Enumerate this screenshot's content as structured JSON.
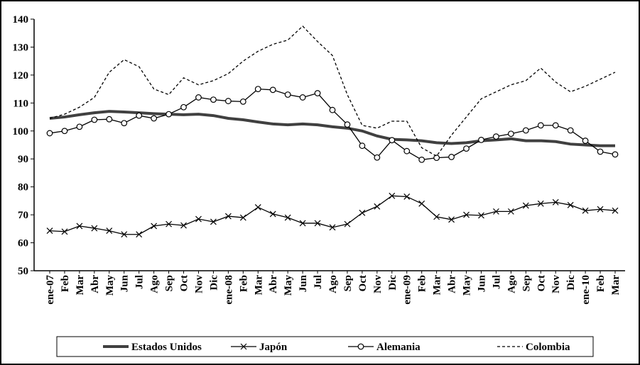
{
  "chart_data": {
    "type": "line",
    "categories": [
      "ene-07",
      "Feb",
      "Mar",
      "Abr",
      "May",
      "Jun",
      "Jul",
      "Ago",
      "Sep",
      "Oct",
      "Nov",
      "Dic",
      "ene-08",
      "Feb",
      "Mar",
      "Abr",
      "May",
      "Jun",
      "Jul",
      "Ago",
      "Sep",
      "Oct",
      "Nov",
      "Dic",
      "ene-09",
      "Feb",
      "Mar",
      "Abr",
      "May",
      "Jun",
      "Jul",
      "Ago",
      "Sep",
      "Oct",
      "Nov",
      "Dic",
      "ene-10",
      "Feb",
      "Mar"
    ],
    "series": [
      {
        "name": "Estados Unidos",
        "color": "#404040",
        "line_width": 4,
        "marker": "none",
        "dash": "none",
        "values": [
          104.5,
          105,
          105.8,
          106.5,
          107,
          106.8,
          106.5,
          106.2,
          106,
          105.8,
          106,
          105.5,
          104.5,
          104,
          103.2,
          102.5,
          102.2,
          102.5,
          102.2,
          101.5,
          101,
          100,
          98.2,
          97,
          96.8,
          96.5,
          95.8,
          95.5,
          95.8,
          96.5,
          96.8,
          97.2,
          96.5,
          96.5,
          96.2,
          95.3,
          95,
          94.7,
          94.7
        ]
      },
      {
        "name": "Japón",
        "color": "#000000",
        "line_width": 1.3,
        "marker": "x",
        "dash": "none",
        "values": [
          64.3,
          64,
          66,
          65.2,
          64.3,
          63,
          63,
          66,
          66.7,
          66.2,
          68.5,
          67.5,
          69.5,
          69,
          72.7,
          70.3,
          69,
          67,
          67,
          65.5,
          66.7,
          70.7,
          73,
          76.8,
          76.5,
          74,
          69.3,
          68.3,
          70,
          69.8,
          71.2,
          71.2,
          73.3,
          74,
          74.5,
          73.5,
          71.5,
          72,
          71.5
        ]
      },
      {
        "name": "Alemania",
        "color": "#000000",
        "line_width": 1.3,
        "marker": "circle",
        "dash": "none",
        "values": [
          99.2,
          100,
          101.5,
          104,
          104.2,
          102.8,
          105.5,
          104.5,
          106,
          108.5,
          112,
          111.2,
          110.7,
          110.5,
          115,
          114.7,
          113,
          112,
          113.5,
          107.5,
          102.3,
          94.7,
          90.5,
          96.7,
          92.8,
          89.7,
          90.4,
          90.7,
          93.7,
          96.8,
          98,
          99,
          100.2,
          102,
          102,
          100.2,
          96.5,
          92.6,
          91.6
        ]
      },
      {
        "name": "Colombia",
        "color": "#000000",
        "line_width": 1.3,
        "marker": "none",
        "dash": "4 3",
        "values": [
          104.5,
          106,
          108.5,
          112,
          121,
          125.5,
          123,
          115,
          113,
          119,
          116.5,
          118,
          120.5,
          125,
          128.5,
          131,
          132.5,
          137.5,
          132,
          127,
          113,
          102,
          101,
          103.5,
          103.5,
          94,
          91,
          98.5,
          105,
          111.5,
          114,
          116.5,
          118,
          122.5,
          117.5,
          114,
          116,
          118.5,
          121
        ]
      }
    ],
    "ylim": [
      50,
      140
    ],
    "yticks": [
      50,
      60,
      70,
      80,
      90,
      100,
      110,
      120,
      130,
      140
    ],
    "grid": false,
    "legend": "bottom"
  }
}
